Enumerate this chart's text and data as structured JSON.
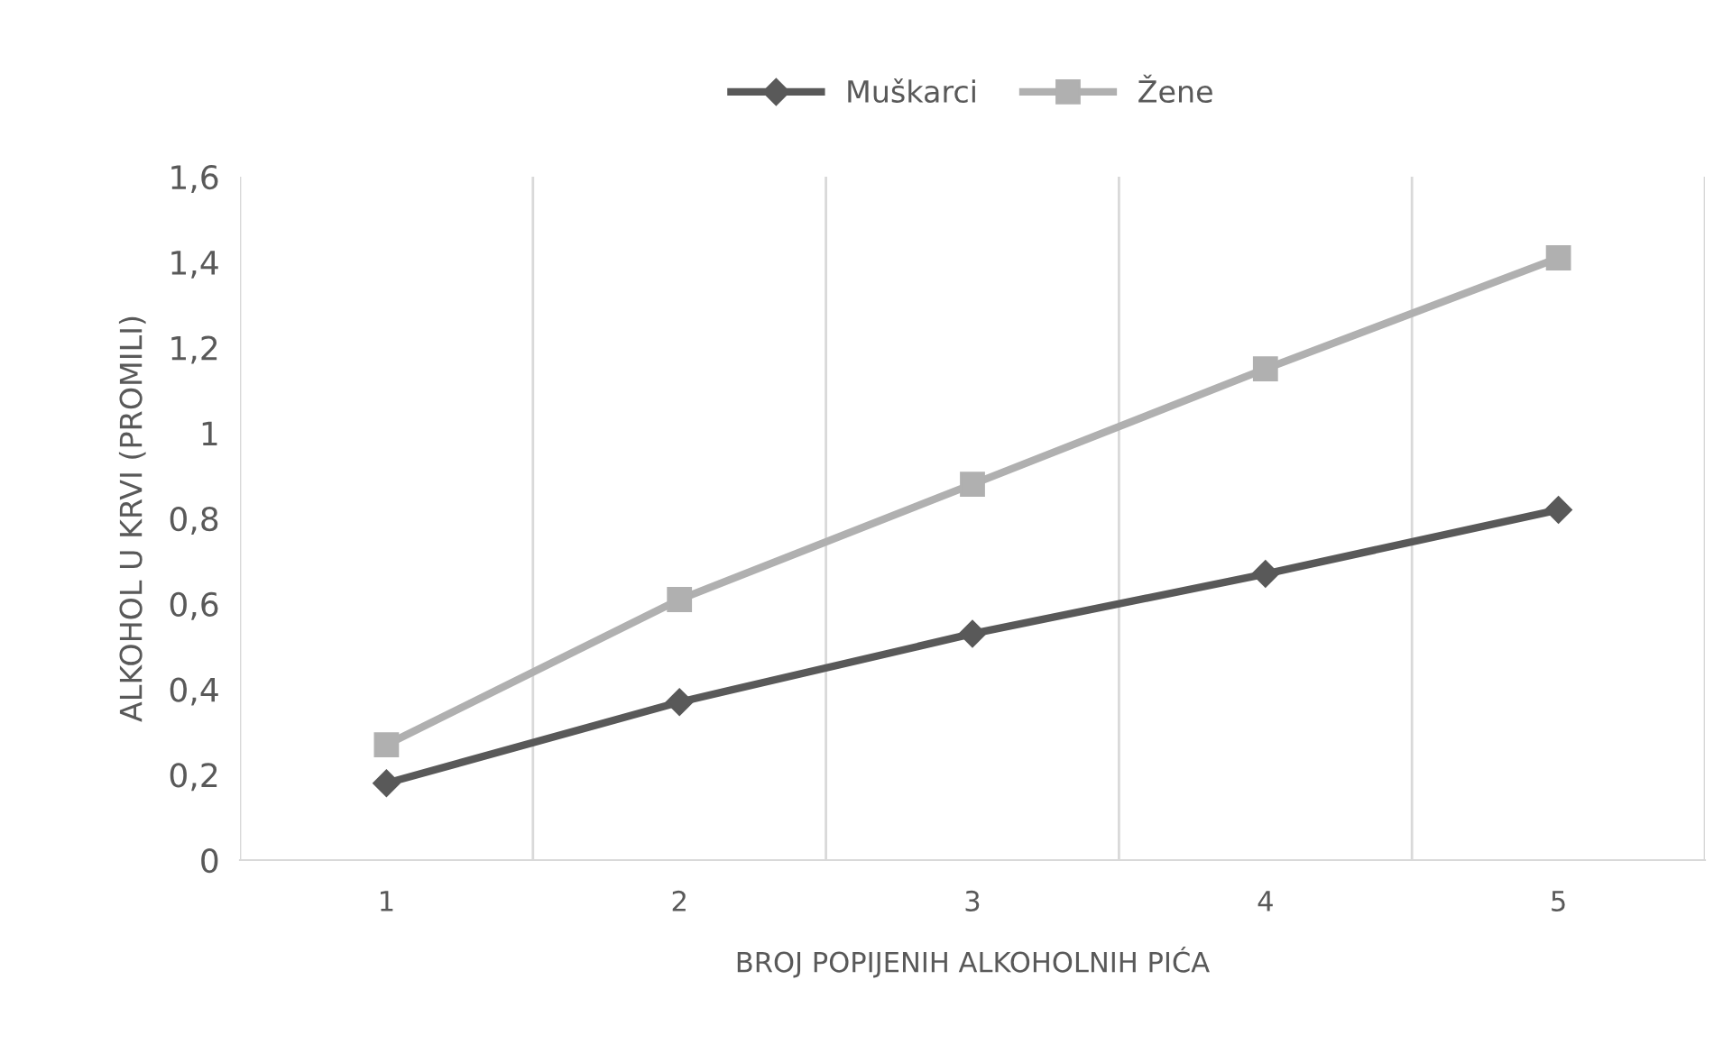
{
  "chart_data": {
    "type": "line",
    "xlabel": "BROJ POPIJENIH ALKOHOLNIH PIĆA",
    "ylabel": "ALKOHOL U KRVI (PROMILI)",
    "categories": [
      "1",
      "2",
      "3",
      "4",
      "5"
    ],
    "series": [
      {
        "name": "Muškarci",
        "color": "#595959",
        "marker": "diamond",
        "values": [
          0.18,
          0.37,
          0.53,
          0.67,
          0.82
        ]
      },
      {
        "name": "Žene",
        "color": "#b0b0b0",
        "marker": "square",
        "values": [
          0.27,
          0.61,
          0.88,
          1.15,
          1.41
        ]
      }
    ],
    "ylim": [
      0,
      1.6
    ],
    "yticks": [
      {
        "value": 0,
        "label": "0"
      },
      {
        "value": 0.2,
        "label": "0,2"
      },
      {
        "value": 0.4,
        "label": "0,4"
      },
      {
        "value": 0.6,
        "label": "0,6"
      },
      {
        "value": 0.8,
        "label": "0,8"
      },
      {
        "value": 1,
        "label": "1"
      },
      {
        "value": 1.2,
        "label": "1,2"
      },
      {
        "value": 1.4,
        "label": "1,4"
      },
      {
        "value": 1.6,
        "label": "1,6"
      }
    ],
    "grid": "x",
    "legend": "top",
    "line_style": "solid"
  }
}
